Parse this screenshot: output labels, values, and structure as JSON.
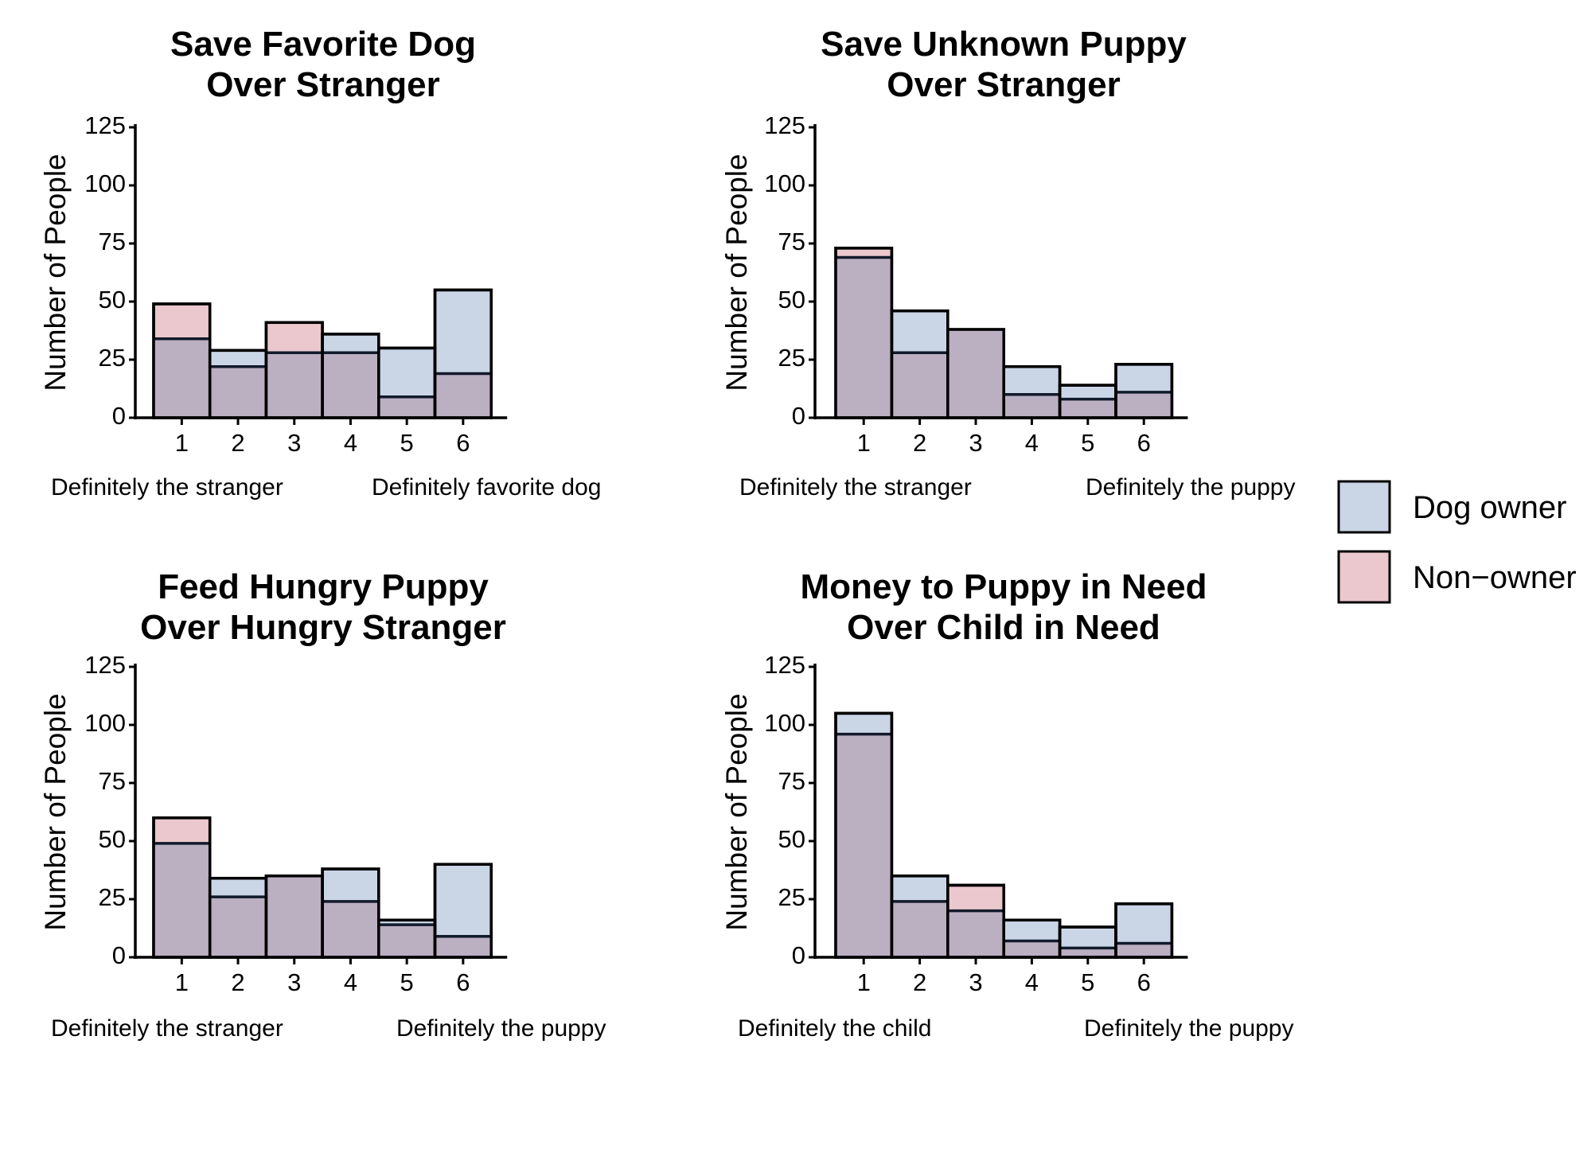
{
  "chart_data": [
    {
      "type": "bar",
      "title": [
        "Save Favorite Dog",
        "Over Stranger"
      ],
      "xlabel": "",
      "ylabel": "Number of People",
      "categories": [
        "1",
        "2",
        "3",
        "4",
        "5",
        "6"
      ],
      "ylim": [
        0,
        125
      ],
      "yticks": [
        "0",
        "25",
        "50",
        "75",
        "100",
        "125"
      ],
      "anchor_left": "Definitely the stranger",
      "anchor_right": "Definitely favorite dog",
      "series": [
        {
          "name": "Dog owner",
          "values": [
            34,
            29,
            28,
            36,
            30,
            55
          ]
        },
        {
          "name": "Non−owner",
          "values": [
            49,
            22,
            41,
            28,
            9,
            19
          ]
        }
      ]
    },
    {
      "type": "bar",
      "title": [
        "Save Unknown Puppy",
        "Over Stranger"
      ],
      "xlabel": "",
      "ylabel": "Number of People",
      "categories": [
        "1",
        "2",
        "3",
        "4",
        "5",
        "6"
      ],
      "ylim": [
        0,
        125
      ],
      "yticks": [
        "0",
        "25",
        "50",
        "75",
        "100",
        "125"
      ],
      "anchor_left": "Definitely the stranger",
      "anchor_right": "Definitely the puppy",
      "series": [
        {
          "name": "Dog owner",
          "values": [
            69,
            46,
            38,
            22,
            14,
            23
          ]
        },
        {
          "name": "Non−owner",
          "values": [
            73,
            28,
            38,
            10,
            8,
            11
          ]
        }
      ]
    },
    {
      "type": "bar",
      "title": [
        "Feed Hungry Puppy",
        "Over Hungry Stranger"
      ],
      "xlabel": "",
      "ylabel": "Number of People",
      "categories": [
        "1",
        "2",
        "3",
        "4",
        "5",
        "6"
      ],
      "ylim": [
        0,
        125
      ],
      "yticks": [
        "0",
        "25",
        "50",
        "75",
        "100",
        "125"
      ],
      "anchor_left": "Definitely the stranger",
      "anchor_right": "Definitely the puppy",
      "series": [
        {
          "name": "Dog owner",
          "values": [
            49,
            34,
            35,
            38,
            16,
            40
          ]
        },
        {
          "name": "Non−owner",
          "values": [
            60,
            26,
            35,
            24,
            14,
            9
          ]
        }
      ]
    },
    {
      "type": "bar",
      "title": [
        "Money to Puppy in Need",
        "Over Child in Need"
      ],
      "xlabel": "",
      "ylabel": "Number of People",
      "categories": [
        "1",
        "2",
        "3",
        "4",
        "5",
        "6"
      ],
      "ylim": [
        0,
        125
      ],
      "yticks": [
        "0",
        "25",
        "50",
        "75",
        "100",
        "125"
      ],
      "anchor_left": "Definitely the child",
      "anchor_right": "Definitely the puppy",
      "series": [
        {
          "name": "Dog owner",
          "values": [
            105,
            35,
            20,
            16,
            13,
            23
          ]
        },
        {
          "name": "Non−owner",
          "values": [
            96,
            24,
            31,
            7,
            4,
            6
          ]
        }
      ]
    }
  ],
  "legend": {
    "position": "right",
    "items": [
      {
        "label": "Dog owner",
        "color": "#cad5e6"
      },
      {
        "label": "Non−owner",
        "color": "#eac8ce"
      }
    ]
  },
  "colors": {
    "dog_owner": "#cad5e6",
    "non_owner": "#eac8ce",
    "overlap": "#bbafc2",
    "stroke": "#000000"
  }
}
